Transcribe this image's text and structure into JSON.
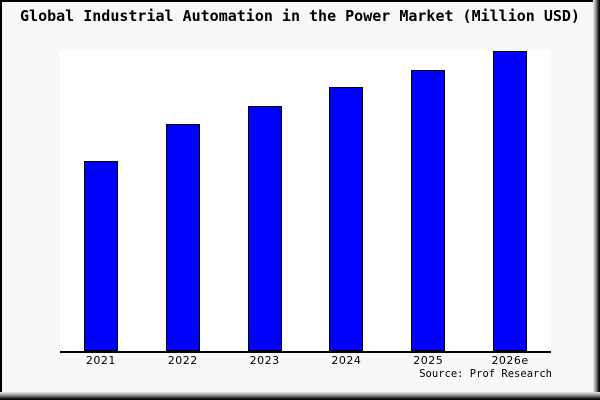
{
  "title": "Global Industrial Automation in the Power Market (Million USD)",
  "source_note": "Source: Prof Research",
  "colors": {
    "bar_fill": "#0000ff",
    "bar_border": "#000000",
    "plot_background": "#ffffff",
    "canvas_background": "#f8f8f8",
    "axis_line": "#000000",
    "text": "#000000"
  },
  "chart_data": {
    "type": "bar",
    "title": "Global Industrial Automation in the Power Market (Million USD)",
    "categories": [
      "2021",
      "2022",
      "2023",
      "2024",
      "2025",
      "2026e"
    ],
    "values": [
      63.3,
      75.6,
      81.6,
      87.9,
      93.7,
      100
    ],
    "values_unit": "relative height, % of 2026e bar (y-axis is unlabeled in the figure)",
    "xlabel": "",
    "ylabel": "",
    "ylim": [
      0,
      100.3
    ],
    "grid": false,
    "legend": false,
    "bar_color": "#0000ff",
    "source": "Source: Prof Research"
  }
}
